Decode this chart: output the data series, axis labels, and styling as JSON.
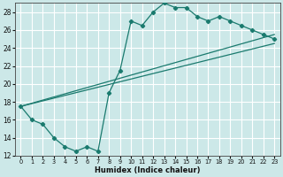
{
  "xlabel": "Humidex (Indice chaleur)",
  "background_color": "#cce8e8",
  "grid_color": "#ffffff",
  "line_color": "#1a7a6e",
  "xlim": [
    -0.5,
    23.5
  ],
  "ylim": [
    12,
    29
  ],
  "xticks": [
    0,
    1,
    2,
    3,
    4,
    5,
    6,
    7,
    8,
    9,
    10,
    11,
    12,
    13,
    14,
    15,
    16,
    17,
    18,
    19,
    20,
    21,
    22,
    23
  ],
  "yticks": [
    12,
    14,
    16,
    18,
    20,
    22,
    24,
    26,
    28
  ],
  "series1_x": [
    0,
    1,
    2,
    3,
    4,
    5,
    6,
    7,
    8,
    9,
    10,
    11,
    12,
    13,
    14,
    15,
    16,
    17,
    18,
    19,
    20,
    21,
    22,
    23
  ],
  "series1_y": [
    17.5,
    16.0,
    15.5,
    14.0,
    13.0,
    12.5,
    13.0,
    12.5,
    19.0,
    21.5,
    27.0,
    26.5,
    28.0,
    29.0,
    28.5,
    28.5,
    27.5,
    27.0,
    27.5,
    27.0,
    26.5,
    26.0,
    25.5,
    25.0
  ],
  "series2_x": [
    0,
    23
  ],
  "series2_y": [
    17.5,
    25.5
  ],
  "series3_x": [
    0,
    23
  ],
  "series3_y": [
    17.5,
    24.5
  ]
}
